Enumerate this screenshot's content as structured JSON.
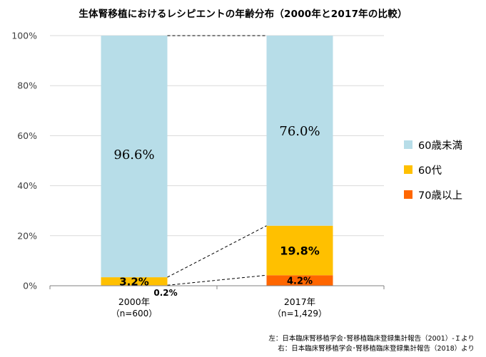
{
  "chart_data": {
    "type": "bar",
    "stacked": true,
    "title": "生体腎移植におけるレシピエントの年齢分布（2000年と2017年の比較）",
    "categories": [
      {
        "year": "2000年",
        "n": "（n=600）"
      },
      {
        "year": "2017年",
        "n": "（n=1,429）"
      }
    ],
    "series": [
      {
        "name": "70歳以上",
        "color": "#ff6600",
        "values": [
          0.2,
          4.2
        ],
        "labels": [
          "0.2%",
          "4.2%"
        ]
      },
      {
        "name": "60代",
        "color": "#ffc000",
        "values": [
          3.2,
          19.8
        ],
        "labels": [
          "3.2%",
          "19.8%"
        ]
      },
      {
        "name": "60歳未満",
        "color": "#b7dde8",
        "values": [
          96.6,
          76.0
        ],
        "labels": [
          "96.6%",
          "76.0%"
        ]
      }
    ],
    "yticks": [
      "0%",
      "20%",
      "40%",
      "60%",
      "80%",
      "100%"
    ],
    "ylim": [
      0,
      100
    ],
    "legend_position": "right",
    "gridlines": true,
    "connector_lines": "dashed"
  },
  "sources": [
    "左：日本臨床腎移植学会･腎移植臨床登録集計報告（2001）-Ｉより",
    "右：日本臨床腎移植学会･腎移植臨床登録集計報告（2018）より"
  ]
}
